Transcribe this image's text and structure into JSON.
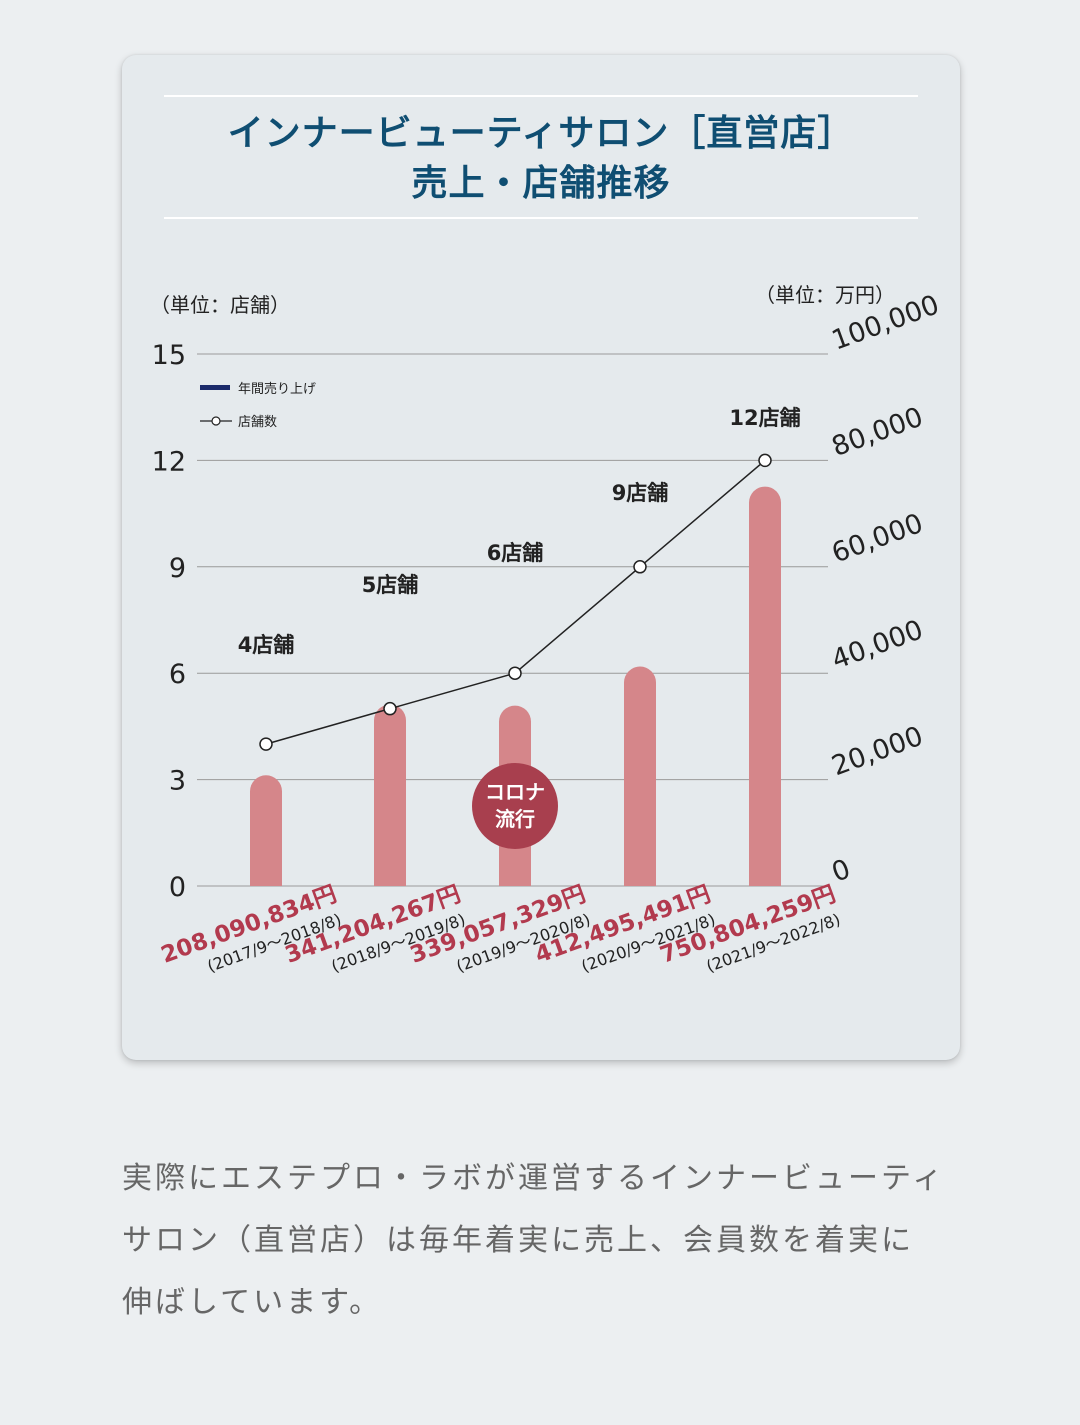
{
  "chart_data": {
    "type": "bar",
    "title_line1": "インナービューティサロン［直営店］",
    "title_line2": "売上・店舗推移",
    "left_axis_label": "（単位：店舗）",
    "right_axis_label": "（単位：万円）",
    "left_ticks": [
      0,
      3,
      6,
      9,
      12,
      15
    ],
    "right_ticks": [
      "0",
      "20,000",
      "40,000",
      "60,000",
      "80,000",
      "100,000"
    ],
    "left_ylim": [
      0,
      15
    ],
    "right_ylim": [
      0,
      100000
    ],
    "legend": {
      "sales": "年間売り上げ",
      "stores": "店舗数"
    },
    "categories": [
      "(2017/9～2018/8)",
      "(2018/9～2019/8)",
      "(2019/9～2020/8)",
      "(2020/9～2021/8)",
      "(2021/9～2022/8)"
    ],
    "sales_labels": [
      "208,090,834円",
      "341,204,267円",
      "339,057,329円",
      "412,495,491円",
      "750,804,259円"
    ],
    "sales_values_man_yen": [
      20809,
      34120,
      33906,
      41250,
      75080
    ],
    "store_counts": [
      4,
      5,
      6,
      9,
      12
    ],
    "store_labels": [
      "4店舗",
      "5店舗",
      "6店舗",
      "9店舗",
      "12店舗"
    ],
    "annotation": {
      "line1": "コロナ",
      "line2": "流行",
      "category_index": 2
    },
    "colors": {
      "bar": "#d5868a",
      "sales_text": "#b23a4e",
      "badge": "#a83f4e",
      "legend_sales": "#1b2a6a",
      "line": "#222222",
      "title": "#0f4e72"
    }
  },
  "description": {
    "line1": "実際にエステプロ・ラボが運営するインナービューティ",
    "line2": "サロン（直営店）は毎年着実に売上、会員数を着実に",
    "line3": "伸ばしています。"
  }
}
